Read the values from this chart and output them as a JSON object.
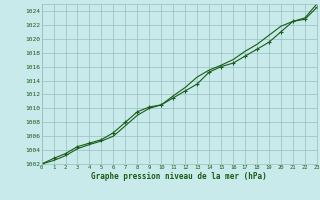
{
  "xlabel": "Graphe pression niveau de la mer (hPa)",
  "hours": [
    0,
    1,
    2,
    3,
    4,
    5,
    6,
    7,
    8,
    9,
    10,
    11,
    12,
    13,
    14,
    15,
    16,
    17,
    18,
    19,
    20,
    21,
    22,
    23
  ],
  "series1": [
    1002.0,
    1002.8,
    1003.5,
    1004.5,
    1005.0,
    1005.5,
    1006.5,
    1008.0,
    1009.5,
    1010.2,
    1010.5,
    1011.5,
    1012.5,
    1013.5,
    1015.2,
    1016.0,
    1016.5,
    1017.5,
    1018.5,
    1019.5,
    1021.0,
    1022.5,
    1022.8,
    1024.5
  ],
  "series2": [
    1002.0,
    1002.5,
    1003.2,
    1004.2,
    1004.8,
    1005.3,
    1006.0,
    1007.5,
    1009.0,
    1010.0,
    1010.5,
    1011.8,
    1013.0,
    1014.5,
    1015.5,
    1016.2,
    1017.0,
    1018.2,
    1019.2,
    1020.5,
    1021.8,
    1022.5,
    1023.0,
    1025.0
  ],
  "ylim_min": 1002,
  "ylim_max": 1025,
  "yticks": [
    1002,
    1004,
    1006,
    1008,
    1010,
    1012,
    1014,
    1016,
    1018,
    1020,
    1022,
    1024
  ],
  "line_color": "#1a5c1a",
  "marker_color": "#1a5c1a",
  "bg_color": "#c8eaea",
  "grid_color": "#96bebe",
  "bottom_label_color": "#1a5c1a",
  "tick_label_color": "#1a5c1a",
  "marker": "+",
  "linewidth": 0.8,
  "markersize": 3.5
}
